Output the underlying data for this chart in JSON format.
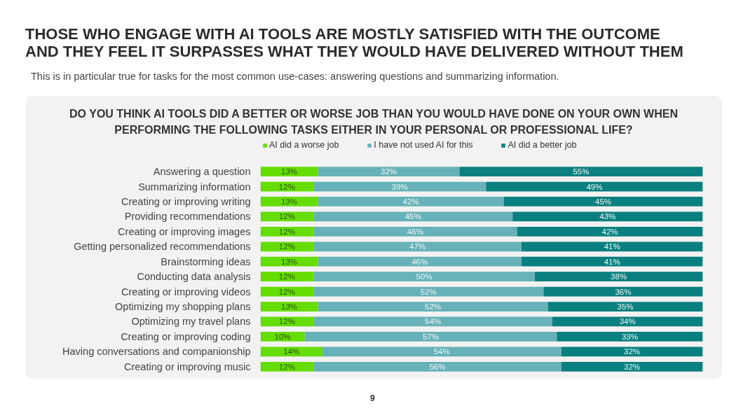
{
  "chart_data": {
    "type": "bar",
    "orientation": "horizontal",
    "stacked": true,
    "legend": "top",
    "tick_labels": "y",
    "title": "THOSE WHO ENGAGE WITH AI TOOLS ARE MOSTLY SATISFIED WITH THE OUTCOME\nAND THEY FEEL IT SURPASSES WHAT THEY WOULD HAVE DELIVERED WITHOUT THEM",
    "subtitle": "This is in particular true for tasks for the most common use-cases: answering questions and summarizing information.",
    "annotations": [
      "DO YOU THINK AI TOOLS DID A BETTER OR WORSE JOB THAN YOU WOULD HAVE DONE ON YOUR OWN WHEN\nPERFORMING THE FOLLOWING TASKS EITHER IN YOUR PERSONAL OR PROFESSIONAL LIFE?",
      "9"
    ],
    "categories": [
      "Answering a question",
      "Summarizing information",
      "Creating or improving writing",
      "Providing recommendations",
      "Creating or improving images",
      "Getting personalized recommendations",
      "Brainstorming ideas",
      "Conducting data analysis",
      "Creating or improving videos",
      "Optimizing my shopping plans",
      "Optimizing my travel plans",
      "Creating or improving coding",
      "Having conversations and companionship",
      "Creating or improving music"
    ],
    "series": [
      {
        "name": "AI did a worse job",
        "color": "#66dd00",
        "values": [
          13,
          12,
          13,
          12,
          12,
          12,
          13,
          12,
          12,
          13,
          12,
          10,
          14,
          12
        ],
        "value_labels": [
          "13%",
          "12%",
          "13%",
          "12%",
          "12%",
          "12%",
          "13%",
          "12%",
          "12%",
          "13%",
          "12%",
          "10%",
          "14%",
          "12%"
        ]
      },
      {
        "name": "I have not used AI for this",
        "color": "#66b2b8",
        "values": [
          32,
          39,
          42,
          45,
          46,
          47,
          46,
          50,
          52,
          52,
          54,
          57,
          54,
          56
        ],
        "value_labels": [
          "32%",
          "39%",
          "42%",
          "45%",
          "46%",
          "47%",
          "46%",
          "50%",
          "52%",
          "52%",
          "54%",
          "57%",
          "54%",
          "56%"
        ]
      },
      {
        "name": "AI did a better job",
        "color": "#0a7f7f",
        "values": [
          55,
          49,
          45,
          43,
          42,
          41,
          41,
          38,
          36,
          35,
          34,
          33,
          32,
          32
        ],
        "value_labels": [
          "55%",
          "49%",
          "45%",
          "43%",
          "42%",
          "41%",
          "41%",
          "38%",
          "36%",
          "35%",
          "34%",
          "33%",
          "32%",
          "32%"
        ]
      }
    ]
  }
}
